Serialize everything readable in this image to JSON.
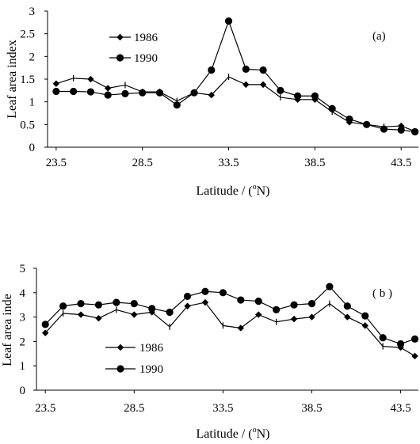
{
  "chart_data": [
    {
      "type": "line",
      "panel_label": "(a)",
      "xlabel": "Latitude / (",
      "xlabel_sup": "o",
      "xlabel_tail": "N)",
      "ylabel": "Leaf area index",
      "xlim": [
        23.0,
        44.5
      ],
      "ylim": [
        0,
        3
      ],
      "xticks": [
        "23.5",
        "28.5",
        "33.5",
        "38.5",
        "43.5"
      ],
      "yticks": [
        "0",
        "0.5",
        "1",
        "1.5",
        "2",
        "2.5",
        "3"
      ],
      "legend": "upper-left",
      "series": [
        {
          "name": "1986",
          "marker": "diamond",
          "x": [
            23.5,
            24.5,
            25.5,
            26.5,
            27.5,
            28.5,
            29.5,
            30.5,
            31.5,
            32.5,
            33.5,
            34.5,
            35.5,
            36.5,
            37.5,
            38.5,
            39.5,
            40.5,
            41.5,
            42.5,
            43.5,
            44.3
          ],
          "y": [
            1.4,
            1.52,
            1.5,
            1.3,
            1.37,
            1.22,
            1.22,
            1.02,
            1.2,
            1.15,
            1.55,
            1.38,
            1.38,
            1.1,
            1.05,
            1.05,
            0.78,
            0.55,
            0.5,
            0.45,
            0.47,
            0.35
          ]
        },
        {
          "name": "1990",
          "marker": "circle",
          "x": [
            23.5,
            24.5,
            25.5,
            26.5,
            27.5,
            28.5,
            29.5,
            30.5,
            31.5,
            32.5,
            33.5,
            34.5,
            35.5,
            36.5,
            37.5,
            38.5,
            39.5,
            40.5,
            41.5,
            42.5,
            43.5,
            44.3
          ],
          "y": [
            1.23,
            1.23,
            1.22,
            1.15,
            1.18,
            1.2,
            1.2,
            0.93,
            1.2,
            1.7,
            2.78,
            1.72,
            1.7,
            1.25,
            1.13,
            1.13,
            0.85,
            0.62,
            0.5,
            0.4,
            0.38,
            0.34
          ]
        }
      ]
    },
    {
      "type": "line",
      "panel_label": "( b )",
      "xlabel": "Latitude / (",
      "xlabel_sup": "o",
      "xlabel_tail": "N)",
      "ylabel": "Leaf area inde",
      "xlim": [
        23.0,
        44.5
      ],
      "ylim": [
        0,
        5
      ],
      "xticks": [
        "23.5",
        "28.5",
        "33.5",
        "38.5",
        "43.5"
      ],
      "yticks": [
        "0",
        "1",
        "2",
        "3",
        "4",
        "5"
      ],
      "legend": "lower-left",
      "series": [
        {
          "name": "1986",
          "marker": "diamond",
          "x": [
            23.5,
            24.5,
            25.5,
            26.5,
            27.5,
            28.5,
            29.5,
            30.5,
            31.5,
            32.5,
            33.5,
            34.5,
            35.5,
            36.5,
            37.5,
            38.5,
            39.5,
            40.5,
            41.5,
            42.5,
            43.5,
            44.3
          ],
          "y": [
            2.35,
            3.15,
            3.1,
            2.95,
            3.3,
            3.1,
            3.2,
            2.6,
            3.45,
            3.6,
            2.65,
            2.55,
            3.1,
            2.8,
            2.92,
            3.0,
            3.55,
            3.0,
            2.65,
            1.8,
            1.75,
            1.4
          ]
        },
        {
          "name": "1990",
          "marker": "circle",
          "x": [
            23.5,
            24.5,
            25.5,
            26.5,
            27.5,
            28.5,
            29.5,
            30.5,
            31.5,
            32.5,
            33.5,
            34.5,
            35.5,
            36.5,
            37.5,
            38.5,
            39.5,
            40.5,
            41.5,
            42.5,
            43.5,
            44.3
          ],
          "y": [
            2.7,
            3.45,
            3.55,
            3.5,
            3.6,
            3.55,
            3.35,
            3.2,
            3.85,
            4.05,
            4.0,
            3.7,
            3.65,
            3.3,
            3.5,
            3.55,
            4.25,
            3.45,
            3.05,
            2.15,
            1.9,
            2.1
          ]
        }
      ]
    }
  ]
}
